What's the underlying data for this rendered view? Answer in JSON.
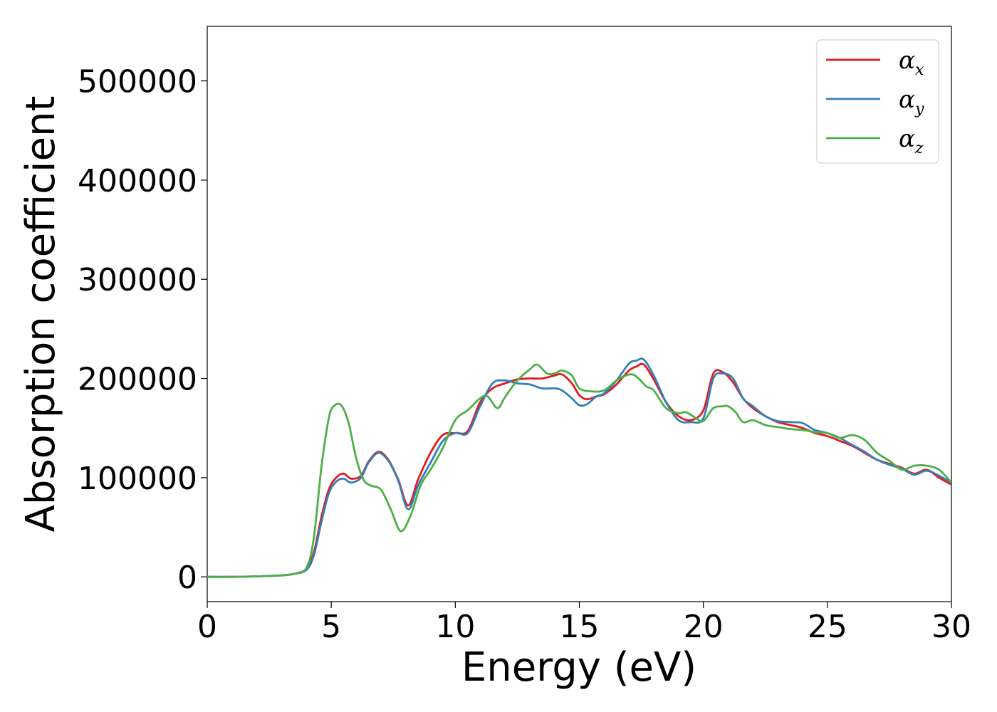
{
  "chart_data": {
    "type": "line",
    "title": "",
    "xlabel": "Energy (eV)",
    "ylabel": "Absorption coefficient",
    "xlim": [
      0,
      30
    ],
    "ylim": [
      -25000,
      555000
    ],
    "xticks": [
      0,
      5,
      10,
      15,
      20,
      25,
      30
    ],
    "yticks": [
      0,
      100000,
      200000,
      300000,
      400000,
      500000
    ],
    "grid": false,
    "legend": "top-right",
    "series": [
      {
        "name": "αx",
        "label_base": "α",
        "label_sub": "x",
        "color": "#e41a1c",
        "x": [
          0,
          1,
          2,
          3,
          3.5,
          4.0,
          4.3,
          4.6,
          4.9,
          5.2,
          5.5,
          5.8,
          6.2,
          6.5,
          6.9,
          7.3,
          7.7,
          8.1,
          8.5,
          9.0,
          9.5,
          10.0,
          10.5,
          11.0,
          11.5,
          12.0,
          12.5,
          13.0,
          13.5,
          14.0,
          14.3,
          14.7,
          15.0,
          15.3,
          15.7,
          16.0,
          16.5,
          17.0,
          17.3,
          17.6,
          18.0,
          18.5,
          19.0,
          19.5,
          20.0,
          20.4,
          20.8,
          21.2,
          21.6,
          22.0,
          22.5,
          23.0,
          23.5,
          24.0,
          24.5,
          25.0,
          25.5,
          26.0,
          26.5,
          27.0,
          27.5,
          28.0,
          28.5,
          29.0,
          29.5,
          30.0
        ],
        "values": [
          0,
          0,
          500,
          1500,
          3000,
          8000,
          25000,
          60000,
          88000,
          100000,
          104000,
          99000,
          102000,
          116000,
          126000,
          118000,
          98000,
          72000,
          98000,
          125000,
          143000,
          145000,
          147000,
          176000,
          190000,
          195000,
          199000,
          200000,
          200000,
          203000,
          204000,
          195000,
          183000,
          179000,
          182000,
          184000,
          194000,
          208000,
          212000,
          214000,
          199000,
          176000,
          162000,
          158000,
          168000,
          205000,
          206000,
          196000,
          180000,
          170000,
          162000,
          156000,
          153000,
          150000,
          145000,
          142000,
          137000,
          132000,
          125000,
          118000,
          114000,
          110000,
          104000,
          108000,
          100000,
          93000
        ]
      },
      {
        "name": "αy",
        "label_base": "α",
        "label_sub": "y",
        "color": "#377eb8",
        "x": [
          0,
          1,
          2,
          3,
          3.5,
          4.0,
          4.3,
          4.6,
          4.9,
          5.2,
          5.5,
          5.8,
          6.2,
          6.5,
          6.9,
          7.3,
          7.7,
          8.1,
          8.5,
          9.0,
          9.5,
          10.0,
          10.5,
          11.0,
          11.5,
          12.0,
          12.5,
          13.0,
          13.5,
          14.0,
          14.3,
          14.7,
          15.0,
          15.3,
          15.7,
          16.0,
          16.5,
          17.0,
          17.3,
          17.6,
          18.0,
          18.5,
          19.0,
          19.5,
          20.0,
          20.4,
          20.8,
          21.2,
          21.6,
          22.0,
          22.5,
          23.0,
          23.5,
          24.0,
          24.5,
          25.0,
          25.5,
          26.0,
          26.5,
          27.0,
          27.5,
          28.0,
          28.5,
          29.0,
          29.5,
          30.0
        ],
        "values": [
          0,
          0,
          500,
          1500,
          3000,
          7000,
          22000,
          55000,
          84000,
          96000,
          99000,
          95000,
          100000,
          115000,
          125000,
          117000,
          97000,
          68000,
          92000,
          115000,
          137000,
          145000,
          145000,
          172000,
          195000,
          198000,
          195000,
          194000,
          190000,
          190000,
          188000,
          180000,
          173000,
          174000,
          182000,
          185000,
          198000,
          215000,
          218000,
          219000,
          203000,
          176000,
          158000,
          156000,
          160000,
          200000,
          205000,
          200000,
          180000,
          172000,
          162000,
          157000,
          156000,
          155000,
          148000,
          145000,
          140000,
          133000,
          126000,
          118000,
          113000,
          109000,
          103000,
          107000,
          102000,
          95000
        ]
      },
      {
        "name": "αz",
        "label_base": "α",
        "label_sub": "z",
        "color": "#4daf4a",
        "x": [
          0,
          1,
          2,
          3,
          3.5,
          4.0,
          4.3,
          4.6,
          4.9,
          5.1,
          5.4,
          5.7,
          6.0,
          6.3,
          6.6,
          7.0,
          7.4,
          7.8,
          8.2,
          8.6,
          9.0,
          9.5,
          10.0,
          10.5,
          11.0,
          11.3,
          11.7,
          12.0,
          12.5,
          13.0,
          13.3,
          13.7,
          14.0,
          14.3,
          14.7,
          15.0,
          15.5,
          16.0,
          16.5,
          17.0,
          17.3,
          17.7,
          18.0,
          18.5,
          19.0,
          19.3,
          19.7,
          20.0,
          20.4,
          20.8,
          21.0,
          21.3,
          21.6,
          22.0,
          22.5,
          23.0,
          23.5,
          24.0,
          24.5,
          25.0,
          25.5,
          26.0,
          26.5,
          27.0,
          27.5,
          28.0,
          28.5,
          29.0,
          29.5,
          30.0
        ],
        "values": [
          0,
          0,
          500,
          1500,
          3000,
          9000,
          40000,
          110000,
          160000,
          172000,
          173000,
          155000,
          120000,
          98000,
          92000,
          88000,
          68000,
          46000,
          62000,
          92000,
          108000,
          130000,
          158000,
          168000,
          180000,
          182000,
          170000,
          181000,
          198000,
          209000,
          214000,
          205000,
          205000,
          208000,
          203000,
          190000,
          187000,
          188000,
          198000,
          204000,
          202000,
          192000,
          188000,
          170000,
          165000,
          166000,
          160000,
          157000,
          170000,
          172000,
          172000,
          166000,
          156000,
          158000,
          153000,
          151000,
          149000,
          148000,
          146000,
          145000,
          140000,
          143000,
          138000,
          125000,
          117000,
          108000,
          112000,
          112000,
          108000,
          95000
        ]
      }
    ]
  }
}
